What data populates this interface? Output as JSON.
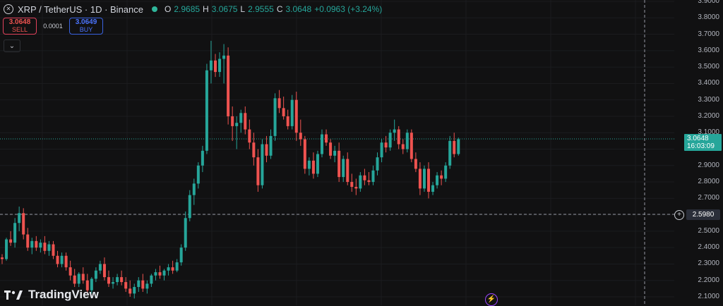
{
  "header": {
    "symbol_icon": "xrp-logo",
    "title": "XRP / TetherUS · 1D · Binance",
    "open_label": "O",
    "open_value": "2.9685",
    "high_label": "H",
    "high_value": "3.0675",
    "low_label": "L",
    "low_value": "2.9555",
    "close_label": "C",
    "close_value": "3.0648",
    "change": "+0.0963 (+3.24%)"
  },
  "trade": {
    "sell_price": "3.0648",
    "sell_label": "SELL",
    "spread": "0.0001",
    "buy_price": "3.0649",
    "buy_label": "BUY"
  },
  "price_axis": {
    "labels": [
      "3.9000",
      "3.8000",
      "3.7000",
      "3.6000",
      "3.5000",
      "3.4000",
      "3.3000",
      "3.2000",
      "3.1000",
      "3.0000",
      "2.9000",
      "2.8000",
      "2.7000",
      "2.6000",
      "2.5000",
      "2.4000",
      "2.3000",
      "2.2000",
      "2.1000"
    ],
    "current_price": "3.0648",
    "countdown": "16:03:09",
    "crosshair_price": "2.5980"
  },
  "branding": {
    "logo_text": "TradingView"
  },
  "colors": {
    "up": "#26a69a",
    "down": "#ef5350",
    "background": "#111112",
    "grid": "#1b1c1f"
  },
  "chart_data": {
    "type": "candlestick",
    "symbol": "XRP / TetherUS",
    "interval": "1D",
    "exchange": "Binance",
    "ylim": [
      2.1,
      3.9
    ],
    "candles": [
      [
        2.34,
        2.36,
        2.3,
        2.33
      ],
      [
        2.33,
        2.46,
        2.32,
        2.45
      ],
      [
        2.45,
        2.5,
        2.41,
        2.43
      ],
      [
        2.43,
        2.58,
        2.4,
        2.55
      ],
      [
        2.55,
        2.65,
        2.5,
        2.61
      ],
      [
        2.61,
        2.64,
        2.45,
        2.48
      ],
      [
        2.48,
        2.52,
        2.38,
        2.4
      ],
      [
        2.4,
        2.46,
        2.36,
        2.44
      ],
      [
        2.44,
        2.47,
        2.38,
        2.4
      ],
      [
        2.4,
        2.45,
        2.37,
        2.43
      ],
      [
        2.43,
        2.47,
        2.36,
        2.38
      ],
      [
        2.38,
        2.44,
        2.35,
        2.42
      ],
      [
        2.42,
        2.44,
        2.33,
        2.35
      ],
      [
        2.35,
        2.38,
        2.28,
        2.3
      ],
      [
        2.3,
        2.37,
        2.28,
        2.35
      ],
      [
        2.35,
        2.37,
        2.26,
        2.28
      ],
      [
        2.28,
        2.32,
        2.2,
        2.23
      ],
      [
        2.23,
        2.27,
        2.16,
        2.18
      ],
      [
        2.18,
        2.25,
        2.16,
        2.24
      ],
      [
        2.24,
        2.28,
        2.18,
        2.2
      ],
      [
        2.2,
        2.24,
        2.12,
        2.14
      ],
      [
        2.14,
        2.22,
        2.12,
        2.21
      ],
      [
        2.21,
        2.28,
        2.19,
        2.26
      ],
      [
        2.26,
        2.32,
        2.24,
        2.3
      ],
      [
        2.3,
        2.34,
        2.2,
        2.22
      ],
      [
        2.22,
        2.26,
        2.16,
        2.18
      ],
      [
        2.18,
        2.22,
        2.15,
        2.19
      ],
      [
        2.19,
        2.24,
        2.17,
        2.22
      ],
      [
        2.22,
        2.26,
        2.17,
        2.19
      ],
      [
        2.19,
        2.22,
        2.13,
        2.15
      ],
      [
        2.15,
        2.2,
        2.1,
        2.12
      ],
      [
        2.12,
        2.18,
        2.09,
        2.16
      ],
      [
        2.16,
        2.22,
        2.13,
        2.2
      ],
      [
        2.2,
        2.24,
        2.13,
        2.15
      ],
      [
        2.15,
        2.2,
        2.12,
        2.18
      ],
      [
        2.18,
        2.24,
        2.16,
        2.23
      ],
      [
        2.23,
        2.27,
        2.2,
        2.25
      ],
      [
        2.25,
        2.29,
        2.21,
        2.23
      ],
      [
        2.23,
        2.27,
        2.2,
        2.26
      ],
      [
        2.26,
        2.3,
        2.23,
        2.28
      ],
      [
        2.28,
        2.32,
        2.24,
        2.26
      ],
      [
        2.26,
        2.33,
        2.25,
        2.31
      ],
      [
        2.31,
        2.42,
        2.29,
        2.4
      ],
      [
        2.4,
        2.62,
        2.38,
        2.58
      ],
      [
        2.58,
        2.75,
        2.56,
        2.72
      ],
      [
        2.72,
        2.82,
        2.66,
        2.79
      ],
      [
        2.79,
        2.92,
        2.76,
        2.9
      ],
      [
        2.9,
        3.02,
        2.86,
        2.99
      ],
      [
        2.99,
        3.52,
        2.97,
        3.48
      ],
      [
        3.48,
        3.66,
        3.4,
        3.54
      ],
      [
        3.54,
        3.58,
        3.44,
        3.47
      ],
      [
        3.47,
        3.59,
        3.44,
        3.55
      ],
      [
        3.55,
        3.64,
        3.4,
        3.57
      ],
      [
        3.57,
        3.62,
        3.15,
        3.2
      ],
      [
        3.2,
        3.26,
        3.05,
        3.14
      ],
      [
        3.14,
        3.2,
        3.0,
        3.16
      ],
      [
        3.16,
        3.24,
        3.1,
        3.22
      ],
      [
        3.22,
        3.26,
        3.09,
        3.12
      ],
      [
        3.12,
        3.18,
        3.0,
        3.04
      ],
      [
        3.04,
        3.1,
        2.9,
        2.95
      ],
      [
        2.95,
        3.0,
        2.74,
        2.78
      ],
      [
        2.78,
        3.06,
        2.76,
        3.03
      ],
      [
        3.03,
        3.08,
        2.92,
        2.96
      ],
      [
        2.96,
        3.12,
        2.94,
        3.08
      ],
      [
        3.08,
        3.34,
        3.05,
        3.31
      ],
      [
        3.31,
        3.36,
        3.22,
        3.25
      ],
      [
        3.25,
        3.32,
        3.18,
        3.2
      ],
      [
        3.2,
        3.24,
        3.12,
        3.14
      ],
      [
        3.14,
        3.33,
        3.12,
        3.3
      ],
      [
        3.3,
        3.35,
        3.05,
        3.1
      ],
      [
        3.1,
        3.18,
        3.02,
        3.06
      ],
      [
        3.06,
        3.08,
        2.85,
        2.88
      ],
      [
        2.88,
        2.95,
        2.84,
        2.93
      ],
      [
        2.93,
        2.98,
        2.82,
        2.85
      ],
      [
        2.85,
        2.99,
        2.83,
        2.97
      ],
      [
        2.97,
        3.12,
        2.95,
        3.09
      ],
      [
        3.09,
        3.12,
        3.02,
        3.04
      ],
      [
        3.04,
        3.06,
        2.94,
        2.96
      ],
      [
        2.96,
        3.02,
        2.92,
        2.99
      ],
      [
        2.99,
        3.04,
        2.8,
        2.83
      ],
      [
        2.83,
        2.96,
        2.8,
        2.94
      ],
      [
        2.94,
        2.98,
        2.78,
        2.8
      ],
      [
        2.8,
        2.85,
        2.74,
        2.77
      ],
      [
        2.77,
        2.82,
        2.72,
        2.76
      ],
      [
        2.76,
        2.86,
        2.74,
        2.84
      ],
      [
        2.84,
        2.88,
        2.78,
        2.81
      ],
      [
        2.81,
        2.86,
        2.78,
        2.8
      ],
      [
        2.8,
        2.9,
        2.78,
        2.87
      ],
      [
        2.87,
        2.98,
        2.84,
        2.95
      ],
      [
        2.95,
        3.06,
        2.92,
        3.04
      ],
      [
        3.04,
        3.08,
        2.98,
        3.01
      ],
      [
        3.01,
        3.12,
        2.99,
        3.1
      ],
      [
        3.1,
        3.18,
        3.05,
        3.12
      ],
      [
        3.12,
        3.14,
        3.0,
        3.03
      ],
      [
        3.03,
        3.06,
        2.97,
        3.0
      ],
      [
        3.0,
        3.12,
        2.98,
        3.1
      ],
      [
        3.1,
        3.12,
        2.92,
        2.94
      ],
      [
        2.94,
        2.98,
        2.86,
        2.88
      ],
      [
        2.88,
        2.92,
        2.72,
        2.76
      ],
      [
        2.76,
        2.9,
        2.74,
        2.88
      ],
      [
        2.88,
        2.92,
        2.7,
        2.74
      ],
      [
        2.74,
        2.8,
        2.72,
        2.78
      ],
      [
        2.78,
        2.86,
        2.76,
        2.84
      ],
      [
        2.84,
        2.87,
        2.78,
        2.82
      ],
      [
        2.82,
        2.92,
        2.8,
        2.9
      ],
      [
        2.9,
        3.08,
        2.88,
        3.05
      ],
      [
        3.05,
        3.1,
        2.95,
        2.97
      ],
      [
        2.97,
        3.07,
        2.96,
        3.06
      ]
    ]
  }
}
